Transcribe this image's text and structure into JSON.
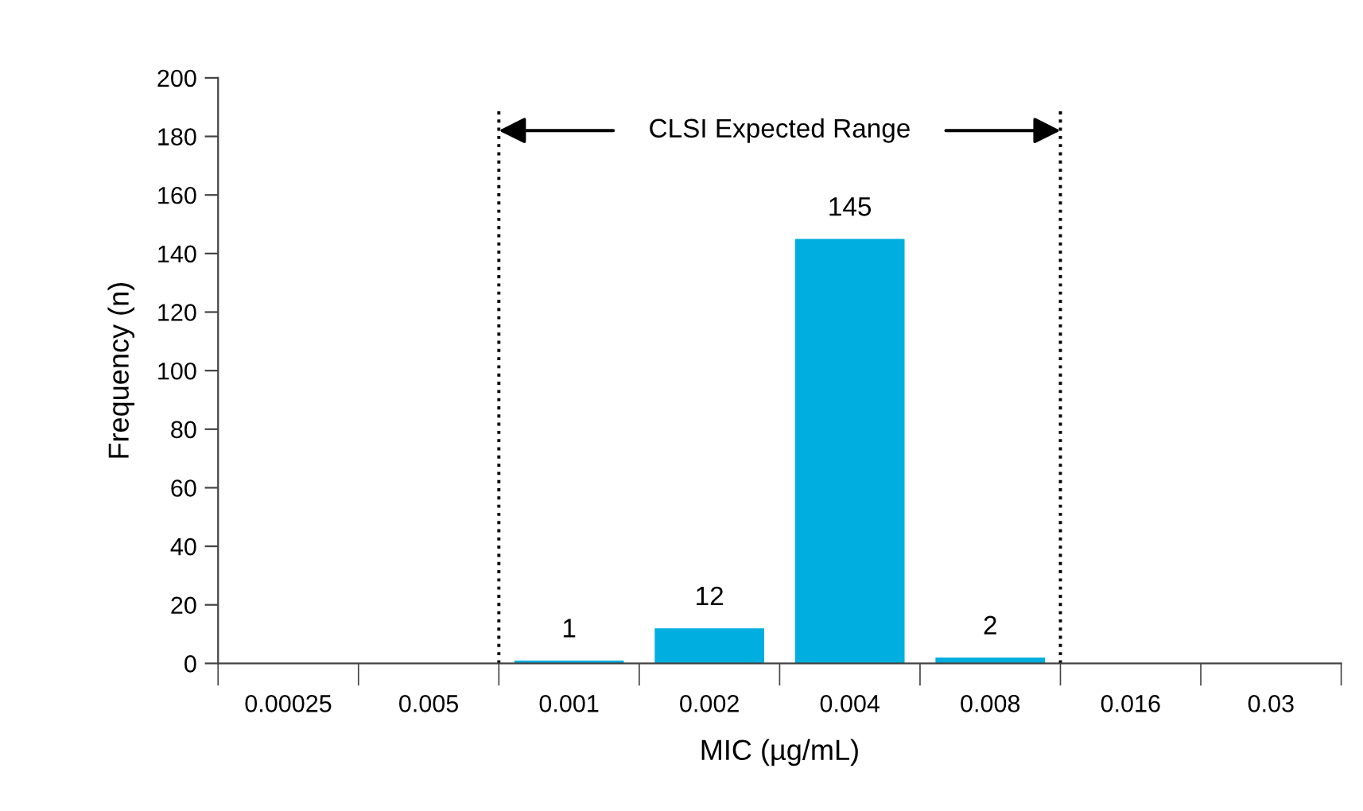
{
  "chart_data": {
    "type": "bar",
    "xlabel": "MIC (µg/mL)",
    "ylabel": "Frequency (n)",
    "categories": [
      "0.00025",
      "0.005",
      "0.001",
      "0.002",
      "0.004",
      "0.008",
      "0.016",
      "0.03"
    ],
    "values": [
      0,
      0,
      1,
      12,
      145,
      2,
      0,
      0
    ],
    "value_labels": [
      null,
      null,
      "1",
      "12",
      "145",
      "2",
      null,
      null
    ],
    "color": "#00aedf",
    "ylim": [
      0,
      200
    ],
    "yticks": [
      0,
      20,
      40,
      60,
      80,
      100,
      120,
      140,
      160,
      180,
      200
    ],
    "annotations": [
      "CLSI Expected Range"
    ],
    "grid": false,
    "legend": false
  }
}
